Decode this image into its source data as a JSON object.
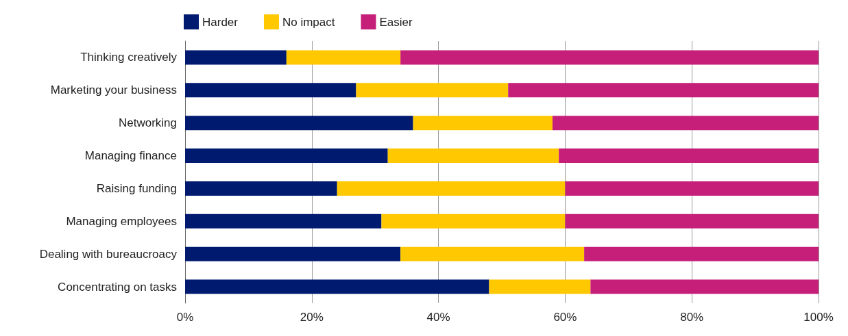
{
  "chart_data": {
    "type": "bar",
    "orientation": "horizontal",
    "stacked": true,
    "categories": [
      "Thinking creatively",
      "Marketing your business",
      "Networking",
      "Managing finance",
      "Raising funding",
      "Managing employees",
      "Dealing with bureaucroacy",
      "Concentrating on tasks"
    ],
    "series": [
      {
        "name": "Harder",
        "color": "#001a70",
        "values": [
          16,
          27,
          36,
          32,
          24,
          31,
          34,
          48
        ]
      },
      {
        "name": "No impact",
        "color": "#ffc800",
        "values": [
          18,
          24,
          22,
          27,
          36,
          29,
          29,
          16
        ]
      },
      {
        "name": "Easier",
        "color": "#c51f7a",
        "values": [
          66,
          49,
          42,
          41,
          40,
          40,
          37,
          36
        ]
      }
    ],
    "xlim": [
      0,
      100
    ],
    "xticks": [
      {
        "value": 0,
        "label": "0%"
      },
      {
        "value": 20,
        "label": "20%"
      },
      {
        "value": 40,
        "label": "40%"
      },
      {
        "value": 60,
        "label": "60%"
      },
      {
        "value": 80,
        "label": "80%"
      },
      {
        "value": 100,
        "label": "100%"
      }
    ],
    "grid": "x",
    "legend": "top left"
  }
}
